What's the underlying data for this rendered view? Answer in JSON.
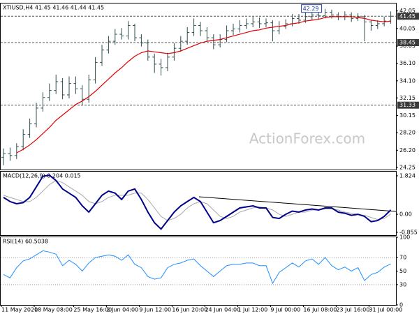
{
  "chart_data": [
    {
      "type": "ohlc",
      "title": "XTIUSD,H4 41.45 41.46 41.44 41.45",
      "watermark": "ActionForex.com",
      "annotation": "42.29",
      "categories": [
        "11 May 2020",
        null,
        null,
        null,
        null,
        "18 May 08:00",
        null,
        null,
        null,
        null,
        null,
        "25 May 16:00",
        null,
        null,
        null,
        null,
        "2 Jun 04:00",
        null,
        null,
        null,
        null,
        "9 Jun 12:00",
        null,
        null,
        null,
        null,
        "16 Jun 20:00",
        null,
        null,
        null,
        null,
        "24 Jun 04:00",
        null,
        null,
        null,
        null,
        "1 Jul 12:00",
        null,
        null,
        null,
        null,
        "9 Jul 00:00",
        null,
        null,
        null,
        null,
        "16 Jul 08:00",
        null,
        null,
        null,
        null,
        "23 Jul 16:00",
        null,
        null,
        null,
        null,
        "31 Jul 00:00",
        null,
        null,
        null
      ],
      "open": [
        25.4,
        25.8,
        25.6,
        26.6,
        28.0,
        29.2,
        31.0,
        32.2,
        33.0,
        34.0,
        32.5,
        33.8,
        33.2,
        32.0,
        34.2,
        36.2,
        37.6,
        38.6,
        39.4,
        39.2,
        40.4,
        39.0,
        38.4,
        36.8,
        36.0,
        35.6,
        36.8,
        37.8,
        38.6,
        39.6,
        40.4,
        39.8,
        39.0,
        38.2,
        38.8,
        39.8,
        40.0,
        40.4,
        40.6,
        40.8,
        40.6,
        40.7,
        39.8,
        40.3,
        40.6,
        41.2,
        41.0,
        41.4,
        41.6,
        41.5,
        41.9,
        41.6,
        41.4,
        41.6,
        41.2,
        41.4,
        40.8,
        40.4,
        40.6,
        40.9
      ],
      "high": [
        26.4,
        26.5,
        27.0,
        28.6,
        29.8,
        31.6,
        32.8,
        33.8,
        34.8,
        34.4,
        34.6,
        34.6,
        33.6,
        34.8,
        36.8,
        38.2,
        39.2,
        40.0,
        40.1,
        40.9,
        40.6,
        39.4,
        38.8,
        37.2,
        36.6,
        37.3,
        38.4,
        39.2,
        40.2,
        41.2,
        40.8,
        40.2,
        39.4,
        39.4,
        40.4,
        40.6,
        41.0,
        41.2,
        41.4,
        41.3,
        41.2,
        41.0,
        40.9,
        41.1,
        41.7,
        41.7,
        41.9,
        42.2,
        42.1,
        42.29,
        42.2,
        41.9,
        42.0,
        41.9,
        41.8,
        41.6,
        41.0,
        41.0,
        41.4,
        42.0
      ],
      "low": [
        24.5,
        25.0,
        25.2,
        26.2,
        27.6,
        28.8,
        30.6,
        31.8,
        32.6,
        32.0,
        32.1,
        32.6,
        31.3,
        31.6,
        33.8,
        35.8,
        37.2,
        38.2,
        38.8,
        38.8,
        38.6,
        38.0,
        36.4,
        35.0,
        34.7,
        35.2,
        36.4,
        37.4,
        38.2,
        39.2,
        39.2,
        38.6,
        37.7,
        37.9,
        38.5,
        39.3,
        39.6,
        40.0,
        40.2,
        40.1,
        40.2,
        38.6,
        39.4,
        40.0,
        40.3,
        40.6,
        40.7,
        41.0,
        41.1,
        41.2,
        41.2,
        41.0,
        41.0,
        40.8,
        40.9,
        38.6,
        39.8,
        40.0,
        40.3,
        40.6
      ],
      "close": [
        25.8,
        25.6,
        26.6,
        28.0,
        29.2,
        31.0,
        32.2,
        33.0,
        34.0,
        32.5,
        33.8,
        33.2,
        32.0,
        34.2,
        36.2,
        37.6,
        38.6,
        39.4,
        39.2,
        40.4,
        39.0,
        38.4,
        36.8,
        36.0,
        35.6,
        36.8,
        37.8,
        38.6,
        39.6,
        40.4,
        39.8,
        39.0,
        38.2,
        38.8,
        39.8,
        40.0,
        40.4,
        40.6,
        40.8,
        40.6,
        40.7,
        39.8,
        40.3,
        40.6,
        41.2,
        41.0,
        41.4,
        41.6,
        41.5,
        41.9,
        41.6,
        41.4,
        41.6,
        41.2,
        41.4,
        40.8,
        40.4,
        40.6,
        40.9,
        41.45
      ],
      "color": "#2f4f4f",
      "ma": {
        "color": "#e00000",
        "values": [
          null,
          null,
          25.9,
          26.3,
          26.8,
          27.4,
          28.1,
          28.8,
          29.6,
          30.2,
          30.8,
          31.4,
          31.8,
          32.3,
          32.9,
          33.6,
          34.3,
          35.0,
          35.6,
          36.3,
          36.9,
          37.3,
          37.5,
          37.4,
          37.3,
          37.2,
          37.3,
          37.5,
          37.8,
          38.1,
          38.4,
          38.6,
          38.7,
          38.8,
          39.0,
          39.2,
          39.4,
          39.6,
          39.8,
          39.9,
          40.1,
          40.2,
          40.3,
          40.4,
          40.6,
          40.7,
          40.9,
          41.0,
          41.1,
          41.3,
          41.4,
          41.4,
          41.4,
          41.4,
          41.3,
          41.2,
          41.0,
          40.9,
          40.8,
          40.9
        ]
      },
      "levels": [
        41.45,
        38.45,
        31.33
      ],
      "ylim": [
        24.0,
        42.9
      ],
      "yticks": [
        24.25,
        {
          "value": 26.2,
          "label": "26.20"
        },
        {
          "value": 28.2,
          "label": "28.20"
        },
        30.15,
        32.15,
        {
          "value": 34.1,
          "label": "34.10"
        },
        {
          "value": 36.1,
          "label": "36.10"
        },
        38.05,
        40.05,
        42.05
      ]
    },
    {
      "type": "macd",
      "title": "MACD(12,26,9) 0.204 0.015",
      "lines": [
        {
          "color": "#00008b",
          "values": [
            0.8,
            0.6,
            0.5,
            0.55,
            0.8,
            1.3,
            1.8,
            1.85,
            1.6,
            1.2,
            1.0,
            0.8,
            0.4,
            0.1,
            0.5,
            0.9,
            1.1,
            1.0,
            0.7,
            1.1,
            1.2,
            0.7,
            0.1,
            -0.4,
            -0.7,
            -0.3,
            0.1,
            0.4,
            0.6,
            0.8,
            0.6,
            0.1,
            -0.4,
            -0.3,
            -0.1,
            0.1,
            0.3,
            0.35,
            0.4,
            0.3,
            0.3,
            -0.15,
            -0.2,
            0.0,
            0.15,
            0.1,
            0.2,
            0.25,
            0.2,
            0.3,
            0.3,
            0.1,
            0.05,
            -0.05,
            0.0,
            -0.1,
            -0.35,
            -0.3,
            -0.1,
            0.204
          ]
        },
        {
          "color": "#a9a9a9",
          "values": [
            0.9,
            0.8,
            0.7,
            0.6,
            0.6,
            0.8,
            1.1,
            1.4,
            1.6,
            1.5,
            1.3,
            1.1,
            0.9,
            0.6,
            0.5,
            0.6,
            0.8,
            0.9,
            0.9,
            0.9,
            1.0,
            1.0,
            0.7,
            0.3,
            -0.1,
            -0.3,
            -0.2,
            0.0,
            0.3,
            0.5,
            0.6,
            0.5,
            0.2,
            -0.1,
            -0.2,
            -0.1,
            0.1,
            0.2,
            0.3,
            0.35,
            0.3,
            0.2,
            0.0,
            -0.1,
            0.0,
            0.1,
            0.1,
            0.2,
            0.2,
            0.25,
            0.25,
            0.2,
            0.1,
            0.05,
            0.0,
            -0.05,
            -0.15,
            -0.25,
            -0.2,
            0.015
          ]
        }
      ],
      "ylim": [
        -0.99,
        2.02
      ],
      "yticks": [
        1.824,
        {
          "value": 0,
          "label": "0.00"
        },
        -0.855
      ]
    },
    {
      "type": "rsi",
      "title": "RSI(14) 60.5038",
      "color": "#1e90ff",
      "values": [
        45,
        40,
        55,
        65,
        68,
        74,
        80,
        78,
        75,
        58,
        66,
        60,
        50,
        62,
        70,
        72,
        74,
        72,
        66,
        74,
        60,
        55,
        42,
        38,
        40,
        55,
        60,
        62,
        66,
        68,
        58,
        50,
        42,
        50,
        58,
        60,
        60,
        62,
        62,
        58,
        58,
        32,
        48,
        55,
        62,
        56,
        65,
        68,
        60,
        70,
        58,
        52,
        56,
        50,
        55,
        36,
        45,
        48,
        56,
        60.5038
      ],
      "ylim": [
        0,
        100
      ],
      "yticks": [
        100,
        70,
        50,
        30,
        0
      ]
    }
  ]
}
